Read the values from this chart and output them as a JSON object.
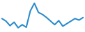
{
  "x": [
    0,
    1,
    2,
    3,
    4,
    5,
    6,
    7,
    8,
    9,
    10,
    11,
    12,
    13,
    14,
    15,
    16,
    17,
    18,
    19,
    20
  ],
  "y": [
    14.0,
    13.5,
    12.6,
    13.3,
    12.2,
    12.8,
    12.3,
    15.5,
    17.0,
    15.2,
    14.8,
    14.2,
    13.5,
    12.8,
    13.6,
    12.5,
    13.0,
    13.5,
    14.0,
    13.7,
    14.2
  ],
  "line_color": "#2b8ccc",
  "linewidth": 1.5,
  "ylim": [
    11.5,
    17.5
  ],
  "background_color": "#ffffff"
}
